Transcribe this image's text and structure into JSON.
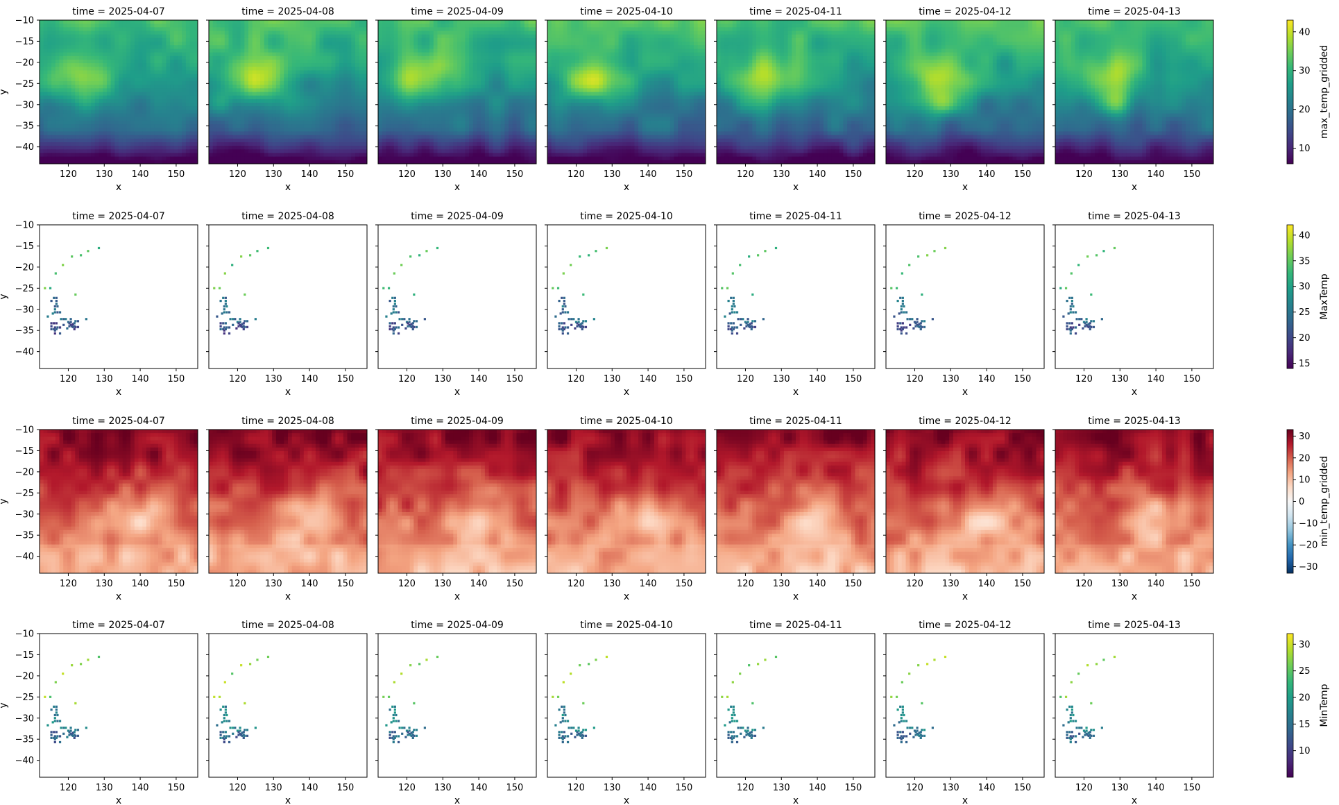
{
  "chart_data": {
    "type": "heatmap",
    "layout": "facet-grid",
    "facet_titles": [
      "time = 2025-04-07",
      "time = 2025-04-08",
      "time = 2025-04-09",
      "time = 2025-04-10",
      "time = 2025-04-11",
      "time = 2025-04-12",
      "time = 2025-04-13"
    ],
    "x": {
      "label": "x",
      "range": [
        112,
        156
      ],
      "ticks": [
        120,
        130,
        140,
        150
      ],
      "tick_labels": [
        "120",
        "130",
        "140",
        "150"
      ]
    },
    "y": {
      "label": "y",
      "range": [
        -44,
        -10
      ],
      "ticks": [
        -10,
        -15,
        -20,
        -25,
        -30,
        -35,
        -40
      ],
      "tick_labels": [
        "−10",
        "−15",
        "−20",
        "−25",
        "−30",
        "−35",
        "−40"
      ]
    },
    "rows": [
      {
        "variable": "max_temp_gridded",
        "kind": "gridded",
        "colormap": "viridis",
        "colorbar": {
          "label": "max_temp_gridded",
          "range": [
            6,
            43
          ],
          "ticks": [
            10,
            20,
            30,
            40
          ],
          "tick_labels": [
            "10",
            "20",
            "30",
            "40"
          ]
        }
      },
      {
        "variable": "MaxTemp",
        "kind": "station",
        "colormap": "viridis",
        "colorbar": {
          "label": "MaxTemp",
          "range": [
            14,
            42
          ],
          "ticks": [
            15,
            20,
            25,
            30,
            35,
            40
          ],
          "tick_labels": [
            "15",
            "20",
            "25",
            "30",
            "35",
            "40"
          ]
        }
      },
      {
        "variable": "min_temp_gridded",
        "kind": "gridded",
        "colormap": "RdBu_r",
        "colorbar": {
          "label": "min_temp_gridded",
          "range": [
            -33,
            33
          ],
          "ticks": [
            30,
            20,
            10,
            0,
            -10,
            -20,
            -30
          ],
          "tick_labels": [
            "30",
            "20",
            "10",
            "0",
            "−10",
            "−20",
            "−30"
          ]
        }
      },
      {
        "variable": "MinTemp",
        "kind": "station",
        "colormap": "viridis",
        "colorbar": {
          "label": "MinTemp",
          "range": [
            5,
            32
          ],
          "ticks": [
            10,
            15,
            20,
            25,
            30
          ],
          "tick_labels": [
            "10",
            "15",
            "20",
            "25",
            "30"
          ]
        }
      }
    ]
  }
}
